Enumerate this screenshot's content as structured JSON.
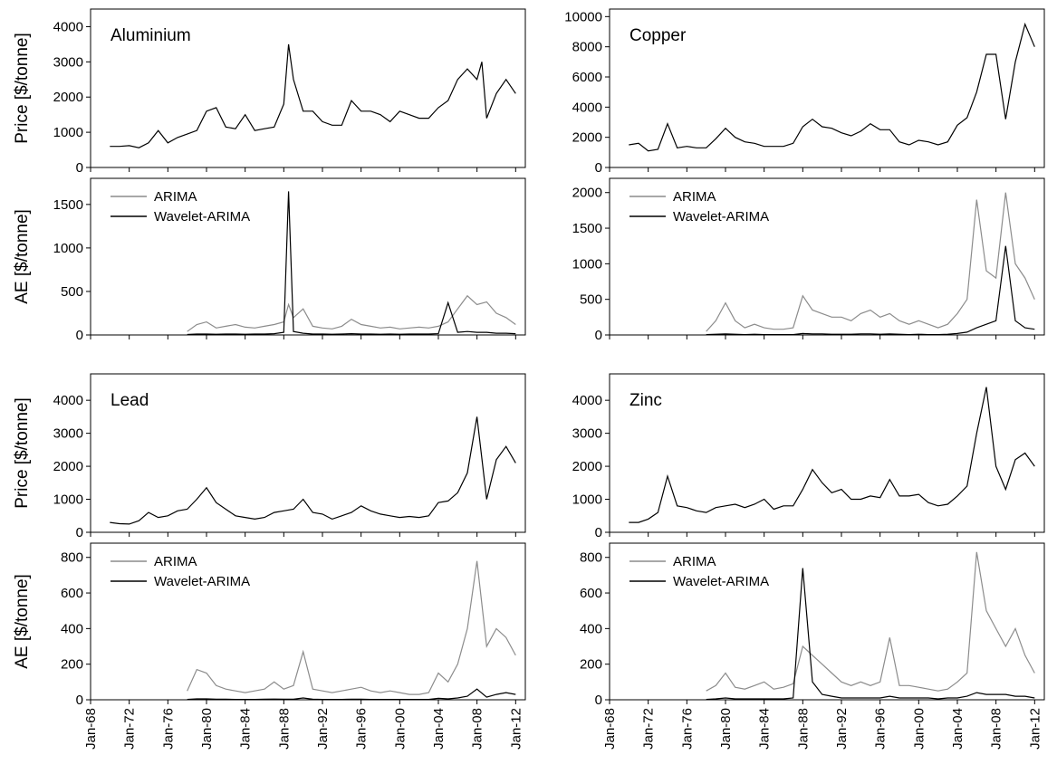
{
  "chart_data": [
    {
      "type": "line",
      "title": "Aluminium",
      "ylabel": "Price [$/tonne]",
      "color": "#000000",
      "xlim": [
        "Jan-68",
        "Jan-13"
      ],
      "ylim": [
        0,
        4500
      ],
      "yticks": [
        0,
        1000,
        2000,
        3000,
        4000
      ],
      "x": [
        "Jan-70",
        "Jan-71",
        "Jan-72",
        "Jan-73",
        "Jan-74",
        "Jan-75",
        "Jan-76",
        "Jan-77",
        "Jan-78",
        "Jan-79",
        "Jan-80",
        "Jan-81",
        "Jan-82",
        "Jan-83",
        "Jan-84",
        "Jan-85",
        "Jan-86",
        "Jan-87",
        "Jan-88",
        "Jul-88",
        "Jan-89",
        "Jan-90",
        "Jan-91",
        "Jan-92",
        "Jan-93",
        "Jan-94",
        "Jan-95",
        "Jan-96",
        "Jan-97",
        "Jan-98",
        "Jan-99",
        "Jan-00",
        "Jan-01",
        "Jan-02",
        "Jan-03",
        "Jan-04",
        "Jan-05",
        "Jan-06",
        "Jan-07",
        "Jan-08",
        "Jul-08",
        "Jan-09",
        "Jan-10",
        "Jan-11",
        "Jan-12"
      ],
      "values": [
        600,
        600,
        620,
        560,
        700,
        1050,
        700,
        850,
        950,
        1050,
        1600,
        1700,
        1150,
        1100,
        1500,
        1050,
        1100,
        1150,
        1800,
        3500,
        2500,
        1600,
        1600,
        1300,
        1200,
        1200,
        1900,
        1600,
        1600,
        1500,
        1300,
        1600,
        1500,
        1400,
        1400,
        1700,
        1900,
        2500,
        2800,
        2500,
        3000,
        1400,
        2100,
        2500,
        2100
      ]
    },
    {
      "type": "line",
      "ylabel": "AE [$/tonne]",
      "xlim": [
        "Jan-68",
        "Jan-13"
      ],
      "ylim": [
        0,
        1800
      ],
      "yticks": [
        0,
        500,
        1000,
        1500
      ],
      "x": [
        "Jan-78",
        "Jan-79",
        "Jan-80",
        "Jan-81",
        "Jan-82",
        "Jan-83",
        "Jan-84",
        "Jan-85",
        "Jan-86",
        "Jan-87",
        "Jan-88",
        "Jul-88",
        "Jan-89",
        "Jan-90",
        "Jan-91",
        "Jan-92",
        "Jan-93",
        "Jan-94",
        "Jan-95",
        "Jan-96",
        "Jan-97",
        "Jan-98",
        "Jan-99",
        "Jan-00",
        "Jan-01",
        "Jan-02",
        "Jan-03",
        "Jan-04",
        "Jan-05",
        "Jan-06",
        "Jan-07",
        "Jan-08",
        "Jan-09",
        "Jan-10",
        "Jan-11",
        "Jan-12"
      ],
      "series": [
        {
          "name": "ARIMA",
          "color": "#8c8c8c",
          "values": [
            40,
            120,
            150,
            80,
            100,
            120,
            90,
            80,
            100,
            120,
            150,
            350,
            200,
            300,
            100,
            80,
            70,
            100,
            180,
            120,
            100,
            80,
            90,
            70,
            80,
            90,
            80,
            100,
            150,
            300,
            450,
            350,
            380,
            250,
            200,
            120
          ]
        },
        {
          "name": "Wavelet-ARIMA",
          "color": "#000000",
          "values": [
            5,
            10,
            10,
            8,
            10,
            10,
            8,
            10,
            10,
            15,
            30,
            1650,
            40,
            20,
            10,
            10,
            8,
            10,
            15,
            10,
            10,
            8,
            10,
            8,
            10,
            10,
            10,
            15,
            370,
            30,
            40,
            30,
            30,
            20,
            20,
            15
          ]
        }
      ]
    },
    {
      "type": "line",
      "title": "Copper",
      "color": "#000000",
      "xlim": [
        "Jan-68",
        "Jan-13"
      ],
      "ylim": [
        0,
        10500
      ],
      "yticks": [
        0,
        2000,
        4000,
        6000,
        8000,
        10000
      ],
      "x": [
        "Jan-70",
        "Jan-71",
        "Jan-72",
        "Jan-73",
        "Jan-74",
        "Jan-75",
        "Jan-76",
        "Jan-77",
        "Jan-78",
        "Jan-79",
        "Jan-80",
        "Jan-81",
        "Jan-82",
        "Jan-83",
        "Jan-84",
        "Jan-85",
        "Jan-86",
        "Jan-87",
        "Jan-88",
        "Jan-89",
        "Jan-90",
        "Jan-91",
        "Jan-92",
        "Jan-93",
        "Jan-94",
        "Jan-95",
        "Jan-96",
        "Jan-97",
        "Jan-98",
        "Jan-99",
        "Jan-00",
        "Jan-01",
        "Jan-02",
        "Jan-03",
        "Jan-04",
        "Jan-05",
        "Jan-06",
        "Jan-07",
        "Jan-08",
        "Jan-09",
        "Jan-10",
        "Jan-11",
        "Jan-12"
      ],
      "values": [
        1500,
        1600,
        1100,
        1200,
        2900,
        1300,
        1400,
        1300,
        1300,
        1900,
        2600,
        2000,
        1700,
        1600,
        1400,
        1400,
        1400,
        1600,
        2700,
        3200,
        2700,
        2600,
        2300,
        2100,
        2400,
        2900,
        2500,
        2500,
        1700,
        1500,
        1800,
        1700,
        1500,
        1700,
        2800,
        3300,
        5000,
        7500,
        7500,
        3200,
        7000,
        9500,
        8000
      ]
    },
    {
      "type": "line",
      "xlim": [
        "Jan-68",
        "Jan-13"
      ],
      "ylim": [
        0,
        2200
      ],
      "yticks": [
        0,
        500,
        1000,
        1500,
        2000
      ],
      "x": [
        "Jan-78",
        "Jan-79",
        "Jan-80",
        "Jan-81",
        "Jan-82",
        "Jan-83",
        "Jan-84",
        "Jan-85",
        "Jan-86",
        "Jan-87",
        "Jan-88",
        "Jan-89",
        "Jan-90",
        "Jan-91",
        "Jan-92",
        "Jan-93",
        "Jan-94",
        "Jan-95",
        "Jan-96",
        "Jan-97",
        "Jan-98",
        "Jan-99",
        "Jan-00",
        "Jan-01",
        "Jan-02",
        "Jan-03",
        "Jan-04",
        "Jan-05",
        "Jan-06",
        "Jan-07",
        "Jan-08",
        "Jan-09",
        "Jan-10",
        "Jan-11",
        "Jan-12"
      ],
      "series": [
        {
          "name": "ARIMA",
          "color": "#8c8c8c",
          "values": [
            50,
            200,
            450,
            200,
            100,
            150,
            100,
            80,
            80,
            100,
            550,
            350,
            300,
            250,
            250,
            200,
            300,
            350,
            250,
            300,
            200,
            150,
            200,
            150,
            100,
            150,
            300,
            500,
            1900,
            900,
            800,
            2000,
            1000,
            800,
            500
          ]
        },
        {
          "name": "Wavelet-ARIMA",
          "color": "#000000",
          "values": [
            5,
            10,
            15,
            10,
            5,
            10,
            5,
            5,
            5,
            5,
            20,
            15,
            15,
            10,
            10,
            10,
            15,
            15,
            10,
            15,
            10,
            5,
            10,
            5,
            5,
            10,
            20,
            40,
            100,
            150,
            200,
            1250,
            200,
            100,
            80
          ]
        }
      ]
    },
    {
      "type": "line",
      "title": "Lead",
      "ylabel": "Price [$/tonne]",
      "color": "#000000",
      "xlim": [
        "Jan-68",
        "Jan-13"
      ],
      "ylim": [
        0,
        4800
      ],
      "yticks": [
        0,
        1000,
        2000,
        3000,
        4000
      ],
      "x": [
        "Jan-70",
        "Jan-71",
        "Jan-72",
        "Jan-73",
        "Jan-74",
        "Jan-75",
        "Jan-76",
        "Jan-77",
        "Jan-78",
        "Jan-79",
        "Jan-80",
        "Jan-81",
        "Jan-82",
        "Jan-83",
        "Jan-84",
        "Jan-85",
        "Jan-86",
        "Jan-87",
        "Jan-88",
        "Jan-89",
        "Jan-90",
        "Jan-91",
        "Jan-92",
        "Jan-93",
        "Jan-94",
        "Jan-95",
        "Jan-96",
        "Jan-97",
        "Jan-98",
        "Jan-99",
        "Jan-00",
        "Jan-01",
        "Jan-02",
        "Jan-03",
        "Jan-04",
        "Jan-05",
        "Jan-06",
        "Jan-07",
        "Jan-08",
        "Jan-09",
        "Jan-10",
        "Jan-11",
        "Jan-12"
      ],
      "values": [
        300,
        260,
        250,
        350,
        600,
        450,
        500,
        650,
        700,
        1000,
        1350,
        900,
        700,
        500,
        450,
        400,
        450,
        600,
        650,
        700,
        1000,
        600,
        550,
        400,
        500,
        600,
        800,
        650,
        550,
        500,
        450,
        480,
        450,
        500,
        900,
        950,
        1200,
        1800,
        3500,
        1000,
        2200,
        2600,
        2100
      ]
    },
    {
      "type": "line",
      "ylabel": "AE [$/tonne]",
      "xlim": [
        "Jan-68",
        "Jan-13"
      ],
      "ylim": [
        0,
        880
      ],
      "yticks": [
        0,
        200,
        400,
        600,
        800
      ],
      "xticks": [
        "Jan-68",
        "Jan-72",
        "Jan-76",
        "Jan-80",
        "Jan-84",
        "Jan-88",
        "Jan-92",
        "Jan-96",
        "Jan-00",
        "Jan-04",
        "Jan-08",
        "Jan-12"
      ],
      "x": [
        "Jan-78",
        "Jan-79",
        "Jan-80",
        "Jan-81",
        "Jan-82",
        "Jan-83",
        "Jan-84",
        "Jan-85",
        "Jan-86",
        "Jan-87",
        "Jan-88",
        "Jan-89",
        "Jan-90",
        "Jan-91",
        "Jan-92",
        "Jan-93",
        "Jan-94",
        "Jan-95",
        "Jan-96",
        "Jan-97",
        "Jan-98",
        "Jan-99",
        "Jan-00",
        "Jan-01",
        "Jan-02",
        "Jan-03",
        "Jan-04",
        "Jan-05",
        "Jan-06",
        "Jan-07",
        "Jan-08",
        "Jan-09",
        "Jan-10",
        "Jan-11",
        "Jan-12"
      ],
      "series": [
        {
          "name": "ARIMA",
          "color": "#8c8c8c",
          "values": [
            50,
            170,
            150,
            80,
            60,
            50,
            40,
            50,
            60,
            100,
            60,
            80,
            270,
            60,
            50,
            40,
            50,
            60,
            70,
            50,
            40,
            50,
            40,
            30,
            30,
            40,
            150,
            100,
            200,
            400,
            780,
            300,
            400,
            350,
            250
          ]
        },
        {
          "name": "Wavelet-ARIMA",
          "color": "#000000",
          "values": [
            2,
            5,
            5,
            3,
            3,
            2,
            2,
            2,
            3,
            4,
            3,
            3,
            10,
            3,
            2,
            2,
            2,
            3,
            3,
            2,
            2,
            2,
            2,
            2,
            2,
            2,
            8,
            5,
            10,
            20,
            60,
            15,
            30,
            40,
            30
          ]
        }
      ]
    },
    {
      "type": "line",
      "title": "Zinc",
      "color": "#000000",
      "xlim": [
        "Jan-68",
        "Jan-13"
      ],
      "ylim": [
        0,
        4800
      ],
      "yticks": [
        0,
        1000,
        2000,
        3000,
        4000
      ],
      "x": [
        "Jan-70",
        "Jan-71",
        "Jan-72",
        "Jan-73",
        "Jan-74",
        "Jan-75",
        "Jan-76",
        "Jan-77",
        "Jan-78",
        "Jan-79",
        "Jan-80",
        "Jan-81",
        "Jan-82",
        "Jan-83",
        "Jan-84",
        "Jan-85",
        "Jan-86",
        "Jan-87",
        "Jan-88",
        "Jan-89",
        "Jan-90",
        "Jan-91",
        "Jan-92",
        "Jan-93",
        "Jan-94",
        "Jan-95",
        "Jan-96",
        "Jan-97",
        "Jan-98",
        "Jan-99",
        "Jan-00",
        "Jan-01",
        "Jan-02",
        "Jan-03",
        "Jan-04",
        "Jan-05",
        "Jan-06",
        "Jan-07",
        "Jan-08",
        "Jan-09",
        "Jan-10",
        "Jan-11",
        "Jan-12"
      ],
      "values": [
        300,
        300,
        400,
        600,
        1700,
        800,
        750,
        650,
        600,
        750,
        800,
        850,
        750,
        850,
        1000,
        700,
        800,
        800,
        1300,
        1900,
        1500,
        1200,
        1300,
        1000,
        1000,
        1100,
        1050,
        1600,
        1100,
        1100,
        1150,
        900,
        800,
        850,
        1100,
        1400,
        3000,
        4400,
        2000,
        1300,
        2200,
        2400,
        2000
      ]
    },
    {
      "type": "line",
      "xlim": [
        "Jan-68",
        "Jan-13"
      ],
      "ylim": [
        0,
        880
      ],
      "yticks": [
        0,
        200,
        400,
        600,
        800
      ],
      "xticks": [
        "Jan-68",
        "Jan-72",
        "Jan-76",
        "Jan-80",
        "Jan-84",
        "Jan-88",
        "Jan-92",
        "Jan-96",
        "Jan-00",
        "Jan-04",
        "Jan-08",
        "Jan-12"
      ],
      "x": [
        "Jan-78",
        "Jan-79",
        "Jan-80",
        "Jan-81",
        "Jan-82",
        "Jan-83",
        "Jan-84",
        "Jan-85",
        "Jan-86",
        "Jan-87",
        "Jan-88",
        "Jan-89",
        "Jan-90",
        "Jan-91",
        "Jan-92",
        "Jan-93",
        "Jan-94",
        "Jan-95",
        "Jan-96",
        "Jan-97",
        "Jan-98",
        "Jan-99",
        "Jan-00",
        "Jan-01",
        "Jan-02",
        "Jan-03",
        "Jan-04",
        "Jan-05",
        "Jan-06",
        "Jan-07",
        "Jan-08",
        "Jan-09",
        "Jan-10",
        "Jan-11",
        "Jan-12"
      ],
      "series": [
        {
          "name": "ARIMA",
          "color": "#8c8c8c",
          "values": [
            50,
            80,
            150,
            70,
            60,
            80,
            100,
            60,
            70,
            90,
            300,
            250,
            200,
            150,
            100,
            80,
            100,
            80,
            100,
            350,
            80,
            80,
            70,
            60,
            50,
            60,
            100,
            150,
            830,
            500,
            400,
            300,
            400,
            250,
            150
          ]
        },
        {
          "name": "Wavelet-ARIMA",
          "color": "#000000",
          "values": [
            2,
            5,
            10,
            5,
            5,
            5,
            5,
            5,
            5,
            10,
            740,
            100,
            30,
            20,
            10,
            10,
            10,
            10,
            10,
            20,
            10,
            10,
            10,
            10,
            5,
            10,
            10,
            20,
            40,
            30,
            30,
            30,
            20,
            20,
            10
          ]
        }
      ]
    }
  ]
}
